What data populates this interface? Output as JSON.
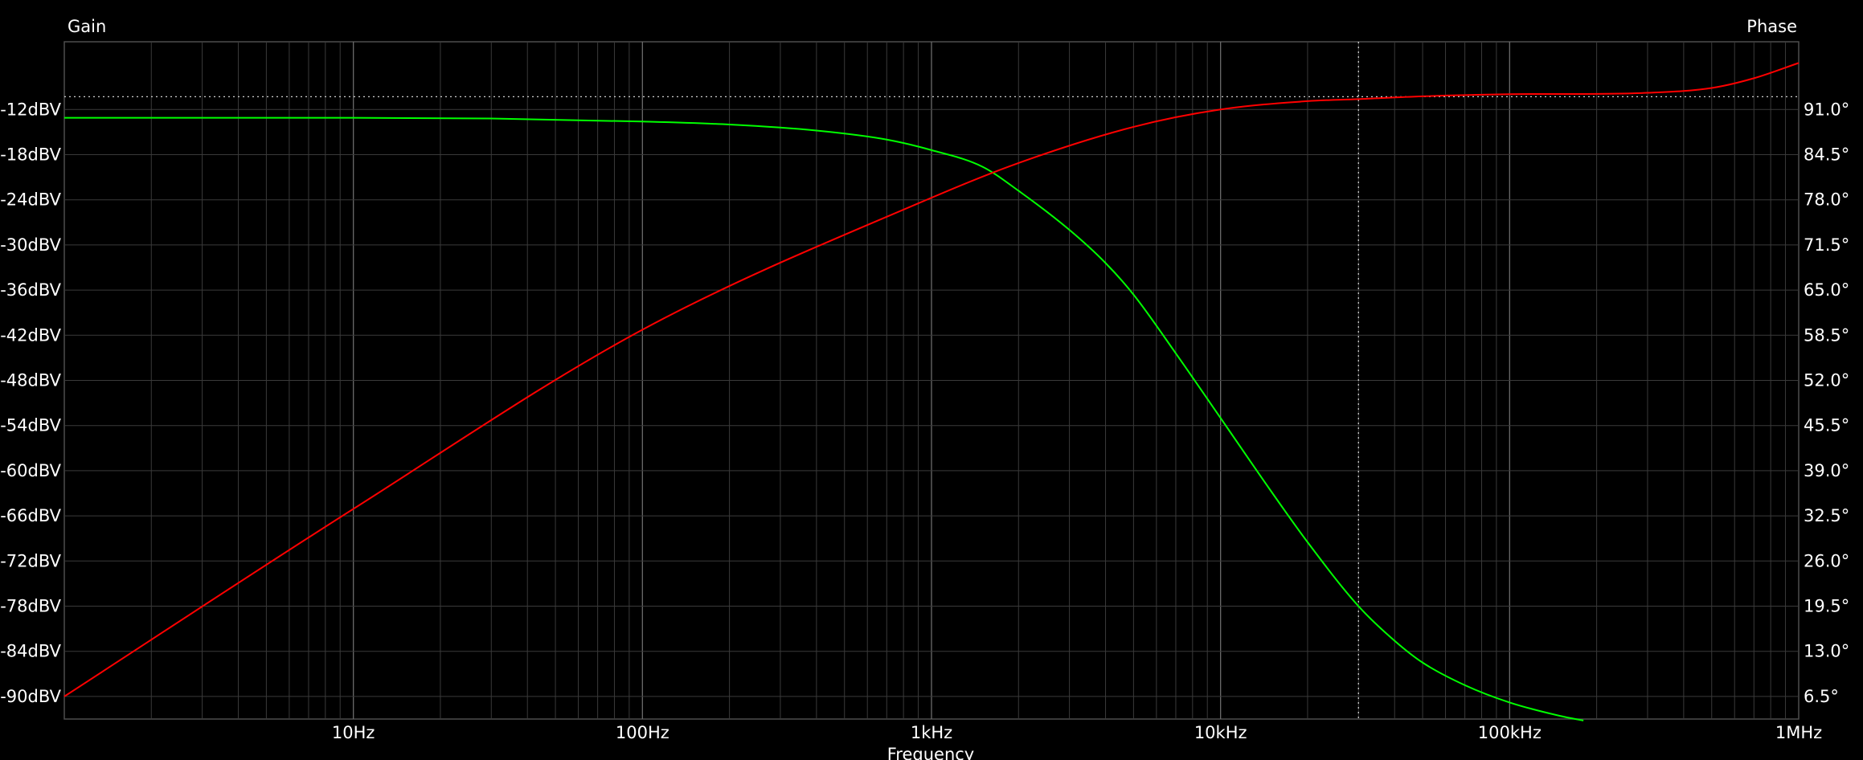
{
  "chart_data": {
    "type": "line",
    "xlabel": "Frequency",
    "ylabel_left": "Gain",
    "ylabel_right": "Phase",
    "x_scale": "log",
    "xlim": [
      1,
      1000000
    ],
    "ylim_left": [
      -93,
      -3
    ],
    "ylim_right": [
      3.25,
      100.75
    ],
    "grid": true,
    "x_ticks": [
      {
        "value": 10,
        "label": "10Hz"
      },
      {
        "value": 100,
        "label": "100Hz"
      },
      {
        "value": 1000,
        "label": "1kHz"
      },
      {
        "value": 10000,
        "label": "10kHz"
      },
      {
        "value": 100000,
        "label": "100kHz"
      },
      {
        "value": 1000000,
        "label": "1MHz"
      }
    ],
    "y_ticks_left": [
      {
        "value": -12,
        "label": "-12dBV"
      },
      {
        "value": -18,
        "label": "-18dBV"
      },
      {
        "value": -24,
        "label": "-24dBV"
      },
      {
        "value": -30,
        "label": "-30dBV"
      },
      {
        "value": -36,
        "label": "-36dBV"
      },
      {
        "value": -42,
        "label": "-42dBV"
      },
      {
        "value": -48,
        "label": "-48dBV"
      },
      {
        "value": -54,
        "label": "-54dBV"
      },
      {
        "value": -60,
        "label": "-60dBV"
      },
      {
        "value": -66,
        "label": "-66dBV"
      },
      {
        "value": -72,
        "label": "-72dBV"
      },
      {
        "value": -78,
        "label": "-78dBV"
      },
      {
        "value": -84,
        "label": "-84dBV"
      },
      {
        "value": -90,
        "label": "-90dBV"
      }
    ],
    "y_ticks_right": [
      {
        "value": 91.0,
        "label": "91.0°"
      },
      {
        "value": 84.5,
        "label": "84.5°"
      },
      {
        "value": 78.0,
        "label": "78.0°"
      },
      {
        "value": 71.5,
        "label": "71.5°"
      },
      {
        "value": 65.0,
        "label": "65.0°"
      },
      {
        "value": 58.5,
        "label": "58.5°"
      },
      {
        "value": 52.0,
        "label": "52.0°"
      },
      {
        "value": 45.5,
        "label": "45.5°"
      },
      {
        "value": 39.0,
        "label": "39.0°"
      },
      {
        "value": 32.5,
        "label": "32.5°"
      },
      {
        "value": 26.0,
        "label": "26.0°"
      },
      {
        "value": 19.5,
        "label": "19.5°"
      },
      {
        "value": 13.0,
        "label": "13.0°"
      },
      {
        "value": 6.5,
        "label": "6.5°"
      }
    ],
    "cursor": {
      "x": 30000,
      "y_left": -10.3
    },
    "series": [
      {
        "axis": "left",
        "color": "#00ff00",
        "points": [
          [
            1,
            -13.1
          ],
          [
            10,
            -13.1
          ],
          [
            30,
            -13.2
          ],
          [
            100,
            -13.6
          ],
          [
            200,
            -14.0
          ],
          [
            400,
            -14.8
          ],
          [
            700,
            -16.0
          ],
          [
            1000,
            -17.4
          ],
          [
            1500,
            -19.6
          ],
          [
            2000,
            -22.8
          ],
          [
            3000,
            -28.0
          ],
          [
            4000,
            -32.4
          ],
          [
            5000,
            -36.6
          ],
          [
            7000,
            -44.4
          ],
          [
            10000,
            -53.0
          ],
          [
            15000,
            -62.8
          ],
          [
            20000,
            -69.5
          ],
          [
            30000,
            -78.0
          ],
          [
            40000,
            -82.6
          ],
          [
            50000,
            -85.5
          ],
          [
            70000,
            -88.5
          ],
          [
            100000,
            -90.8
          ],
          [
            150000,
            -92.6
          ],
          [
            180000,
            -93.2
          ]
        ]
      },
      {
        "axis": "right",
        "color": "#ff0000",
        "points": [
          [
            1,
            6.5
          ],
          [
            10,
            33.5
          ],
          [
            100,
            59.3
          ],
          [
            1000,
            78.3
          ],
          [
            2000,
            83.3
          ],
          [
            5000,
            88.5
          ],
          [
            10000,
            91.0
          ],
          [
            20000,
            92.2
          ],
          [
            30000,
            92.5
          ],
          [
            50000,
            92.9
          ],
          [
            100000,
            93.2
          ],
          [
            300000,
            93.4
          ],
          [
            500000,
            94.1
          ],
          [
            700000,
            95.5
          ],
          [
            1000000,
            97.7
          ]
        ]
      }
    ]
  }
}
